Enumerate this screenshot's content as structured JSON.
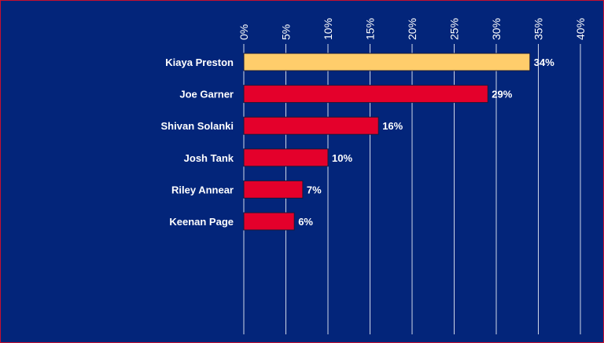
{
  "chart_data": {
    "type": "bar",
    "orientation": "horizontal",
    "categories": [
      "Kiaya Preston",
      "Joe Garner",
      "Shivan Solanki",
      "Josh Tank",
      "Riley Annear",
      "Keenan Page"
    ],
    "values": [
      34,
      29,
      16,
      10,
      7,
      6
    ],
    "data_labels": [
      "34%",
      "29%",
      "16%",
      "10%",
      "7%",
      "6%"
    ],
    "x_ticks": [
      0,
      5,
      10,
      15,
      20,
      25,
      30,
      35,
      40
    ],
    "x_tick_labels": [
      "0%",
      "5%",
      "10%",
      "15%",
      "20%",
      "25%",
      "30%",
      "35%",
      "40%"
    ],
    "xlim": [
      0,
      40
    ],
    "x_axis_position": "top",
    "grid": true,
    "legend": false,
    "title": "",
    "xlabel": "",
    "ylabel": "",
    "colors": {
      "background": "#03257a",
      "highlight_bar": "#ffcd6b",
      "bar": "#e4002b",
      "bar_outline": "#1a1a3a",
      "grid": "#cfd6e8",
      "text": "#ffffff"
    }
  }
}
